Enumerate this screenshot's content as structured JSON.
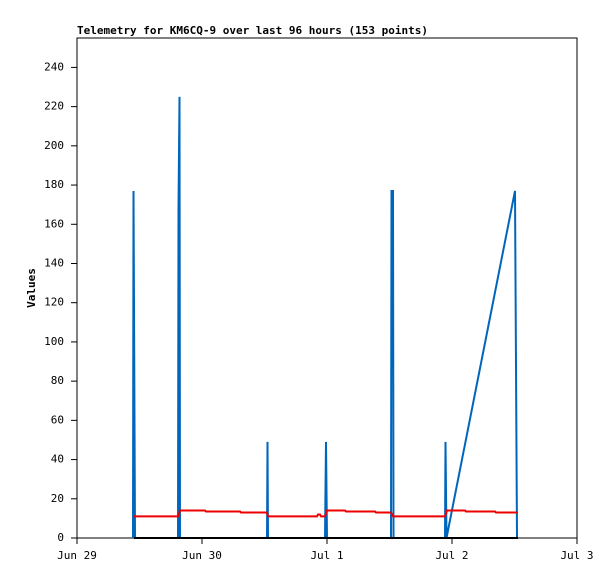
{
  "chart_data": {
    "type": "line",
    "title": "Telemetry for KM6CQ-9 over last 96 hours (153 points)",
    "ylabel": "Values",
    "xlim": [
      0,
      4
    ],
    "xticks": [
      {
        "value": 0,
        "label": "Jun 29"
      },
      {
        "value": 1,
        "label": "Jun 30"
      },
      {
        "value": 2,
        "label": "Jul 1"
      },
      {
        "value": 3,
        "label": "Jul 2"
      },
      {
        "value": 4,
        "label": "Jul 3"
      }
    ],
    "ylim": [
      0,
      255
    ],
    "yticks": [
      0,
      20,
      40,
      60,
      80,
      100,
      120,
      140,
      160,
      180,
      200,
      220,
      240
    ],
    "grid": false,
    "series": [
      {
        "color": "#0066bb",
        "x": [
          0.448,
          0.452,
          0.456,
          0.464,
          0.808,
          0.812,
          0.82,
          0.824,
          1.52,
          1.524,
          1.528,
          1.984,
          1.988,
          1.992,
          2.0,
          2.512,
          2.516,
          2.528,
          2.532,
          2.944,
          2.948,
          2.956,
          3.504,
          3.512,
          3.52
        ],
        "values": [
          0,
          177,
          120,
          0,
          0,
          168,
          225,
          0,
          0,
          49,
          0,
          0,
          25,
          49,
          0,
          0,
          177,
          177,
          0,
          0,
          49,
          0,
          177,
          88,
          0
        ]
      },
      {
        "color": "#ee0000",
        "x": [
          0.456,
          0.808,
          0.824,
          1.024,
          1.032,
          1.304,
          1.312,
          1.52,
          1.528,
          1.92,
          1.928,
          1.944,
          1.952,
          1.984,
          2.0,
          2.144,
          2.152,
          2.384,
          2.392,
          2.512,
          2.528,
          2.944,
          2.96,
          3.104,
          3.112,
          3.344,
          3.352,
          3.528
        ],
        "values": [
          11,
          11,
          14,
          14,
          13.5,
          13.5,
          13,
          13,
          11,
          11,
          12,
          12,
          11,
          11,
          14,
          14,
          13.5,
          13.5,
          13,
          13,
          11,
          11,
          14,
          14,
          13.5,
          13.5,
          13,
          13
        ]
      },
      {
        "color": "#000000",
        "x": [
          0.456,
          3.528
        ],
        "values": [
          0,
          0
        ]
      }
    ]
  }
}
